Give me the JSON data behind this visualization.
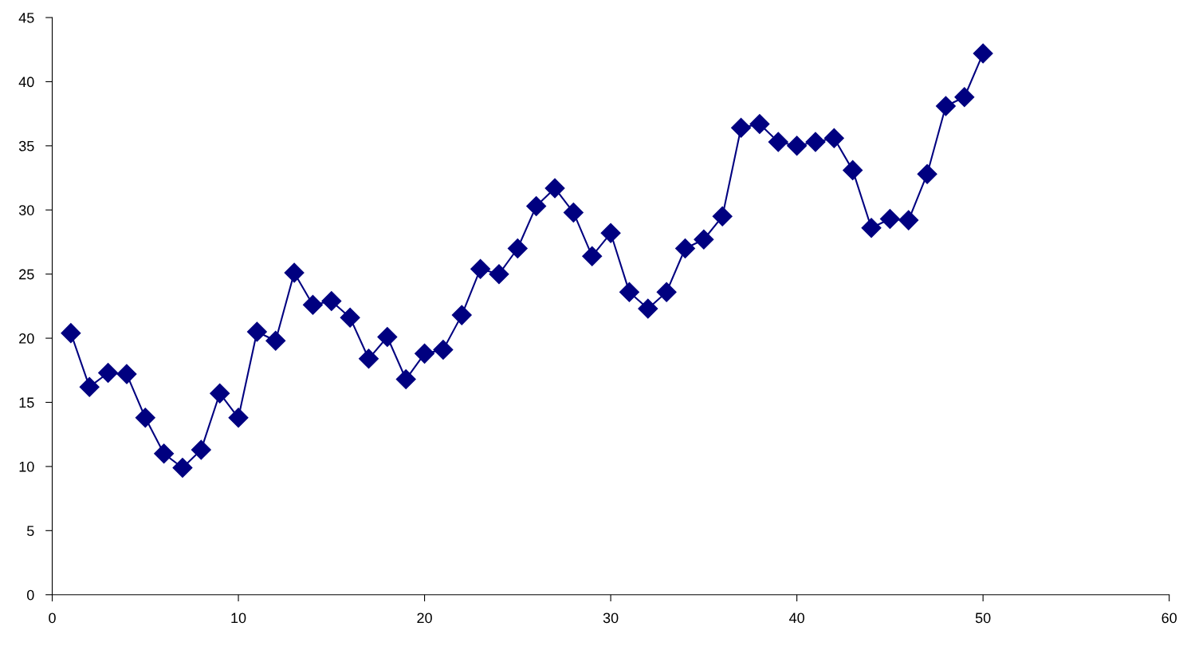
{
  "chart_data": {
    "type": "line",
    "marker": "diamond",
    "line_style": "solid",
    "grid": false,
    "legend": false,
    "xlim": [
      0,
      60
    ],
    "xticks": [
      0,
      10,
      20,
      30,
      40,
      50,
      60
    ],
    "ylim": [
      0,
      45
    ],
    "yticks": [
      0,
      5,
      10,
      15,
      20,
      25,
      30,
      35,
      40,
      45
    ],
    "x": [
      1,
      2,
      3,
      4,
      5,
      6,
      7,
      8,
      9,
      10,
      11,
      12,
      13,
      14,
      15,
      16,
      17,
      18,
      19,
      20,
      21,
      22,
      23,
      24,
      25,
      26,
      27,
      28,
      29,
      30,
      31,
      32,
      33,
      34,
      35,
      36,
      37,
      38,
      39,
      40,
      41,
      42,
      43,
      44,
      45,
      46,
      47,
      48,
      49,
      50
    ],
    "series": [
      {
        "color": "#000080",
        "values": [
          20.4,
          16.2,
          17.3,
          17.2,
          13.8,
          11.0,
          9.9,
          11.3,
          15.7,
          13.8,
          20.5,
          19.8,
          25.1,
          22.6,
          22.9,
          21.6,
          18.4,
          20.1,
          16.8,
          18.8,
          19.1,
          21.8,
          25.4,
          25.0,
          27.0,
          30.3,
          31.7,
          29.8,
          26.4,
          28.2,
          23.6,
          22.3,
          23.6,
          27.0,
          27.7,
          29.5,
          36.4,
          36.7,
          35.3,
          35.0,
          35.3,
          35.6,
          33.1,
          28.6,
          29.3,
          29.2,
          32.8,
          38.1,
          38.8,
          42.2
        ]
      }
    ]
  }
}
